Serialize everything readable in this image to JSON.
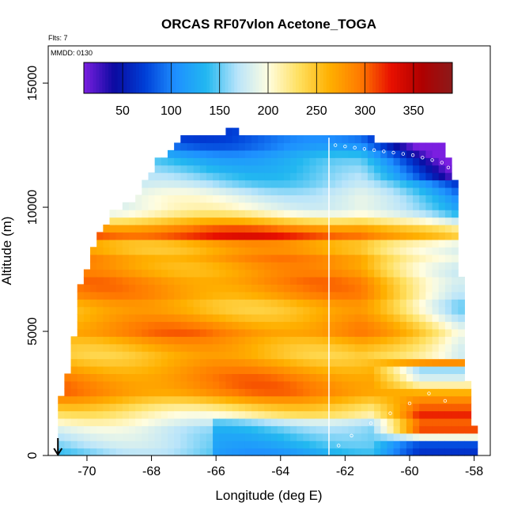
{
  "chart_data": {
    "type": "heatmap",
    "title": "ORCAS RF07vlon Acetone_TOGA",
    "xlabel": "Longitude (deg E)",
    "ylabel": "Altitude (m)",
    "flts_note": "Flts: 7",
    "mmdd_note": "MMDD: 0130",
    "xlim": [
      -71.2,
      -57.5
    ],
    "ylim": [
      0,
      16500
    ],
    "x_ticks": [
      -70,
      -68,
      -66,
      -64,
      -62,
      -60,
      -58
    ],
    "x_tick_labels": [
      "-70",
      "-68",
      "-66",
      "-64",
      "-62",
      "-60",
      "-58"
    ],
    "y_ticks": [
      0,
      5000,
      10000,
      15000
    ],
    "y_tick_labels": [
      "0",
      "5000",
      "10000",
      "15000"
    ],
    "colorbar": {
      "range": [
        10,
        390
      ],
      "ticks": [
        50,
        100,
        150,
        200,
        250,
        300,
        350
      ],
      "tick_labels": [
        "50",
        "100",
        "150",
        "200",
        "250",
        "300",
        "350"
      ],
      "colors": [
        "#7b1fe0",
        "#0a0aa0",
        "#0040d8",
        "#1e90ff",
        "#22b8f0",
        "#b8e4fa",
        "#fffde0",
        "#ffe060",
        "#ffb000",
        "#ff7a00",
        "#e81000",
        "#b00000",
        "#8b1a1a"
      ]
    },
    "dateline_longitude": -62.5,
    "arrow_longitude": -70.9,
    "envelope": {
      "lon": [
        -70.9,
        -70.5,
        -70.2,
        -69.7,
        -69.2,
        -68.5,
        -67.8,
        -67.0,
        -66.0,
        -65.5,
        -64.7,
        -62.5,
        -61.0,
        -59.8,
        -58.9,
        -58.5,
        -58.3,
        -58.1,
        -58.0
      ],
      "top_alt": [
        1800,
        3700,
        6700,
        8500,
        9600,
        10200,
        11700,
        12700,
        12800,
        13000,
        12700,
        12700,
        12600,
        12500,
        12500,
        10300,
        4000,
        2000,
        1200
      ]
    },
    "altitude_profile": {
      "alt": [
        0,
        500,
        1000,
        1500,
        2000,
        2500,
        3000,
        3500,
        4000,
        4500,
        5000,
        5500,
        6000,
        6500,
        7000,
        7500,
        8000,
        8500,
        8700,
        9000,
        9300,
        9600,
        10000,
        10500,
        11000,
        11500,
        12000,
        12500,
        13000
      ],
      "acetone": [
        150,
        165,
        175,
        205,
        240,
        285,
        290,
        275,
        255,
        265,
        290,
        270,
        255,
        280,
        285,
        270,
        280,
        250,
        325,
        305,
        275,
        220,
        195,
        185,
        160,
        145,
        130,
        95,
        80
      ]
    },
    "east_low_profile": {
      "alt": [
        0,
        500,
        1000,
        1500,
        2000,
        2500,
        3000,
        3500
      ],
      "acetone": [
        90,
        110,
        340,
        330,
        300,
        270,
        190,
        160
      ]
    }
  }
}
